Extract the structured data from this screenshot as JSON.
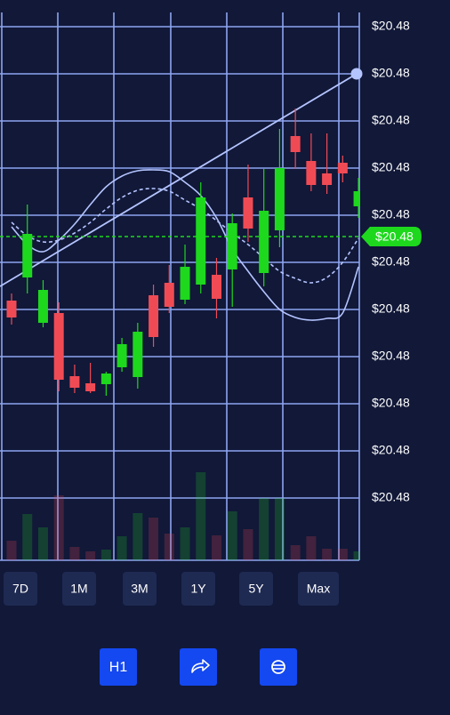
{
  "chart_data": {
    "type": "candlestick",
    "up_color": "#1ed81e",
    "down_color": "#f04b55",
    "grid": true,
    "ylim": [
      0,
      630
    ],
    "yticks": [
      70,
      123,
      176,
      229,
      282,
      335,
      388,
      441,
      494,
      547,
      600
    ],
    "tick_labels": [
      "$20.48",
      "$20.48",
      "$20.48",
      "$20.48",
      "$20.48",
      "$20.48",
      "$20.48",
      "$20.48",
      "$20.48",
      "$20.48",
      "$20.48"
    ],
    "candles": [
      {
        "open": 292,
        "close": 273,
        "high": 300,
        "low": 265
      },
      {
        "open": 318,
        "close": 367,
        "high": 400,
        "low": 300
      },
      {
        "open": 267,
        "close": 304,
        "high": 315,
        "low": 262
      },
      {
        "open": 278,
        "close": 203,
        "high": 290,
        "low": 190
      },
      {
        "open": 207,
        "close": 194,
        "high": 220,
        "low": 188
      },
      {
        "open": 199,
        "close": 190,
        "high": 222,
        "low": 188
      },
      {
        "open": 198,
        "close": 210,
        "high": 212,
        "low": 185
      },
      {
        "open": 217,
        "close": 243,
        "high": 250,
        "low": 212
      },
      {
        "open": 206,
        "close": 257,
        "high": 267,
        "low": 193
      },
      {
        "open": 298,
        "close": 251,
        "high": 310,
        "low": 240
      },
      {
        "open": 312,
        "close": 285,
        "high": 332,
        "low": 278
      },
      {
        "open": 293,
        "close": 330,
        "high": 355,
        "low": 288
      },
      {
        "open": 310,
        "close": 408,
        "high": 425,
        "low": 300
      },
      {
        "open": 321,
        "close": 294,
        "high": 340,
        "low": 272
      },
      {
        "open": 327,
        "close": 379,
        "high": 390,
        "low": 285
      },
      {
        "open": 408,
        "close": 373,
        "high": 445,
        "low": 358
      },
      {
        "open": 323,
        "close": 393,
        "high": 440,
        "low": 308
      },
      {
        "open": 371,
        "close": 441,
        "high": 485,
        "low": 352
      },
      {
        "open": 477,
        "close": 459,
        "high": 508,
        "low": 440
      },
      {
        "open": 449,
        "close": 422,
        "high": 480,
        "low": 415
      },
      {
        "open": 435,
        "close": 422,
        "high": 480,
        "low": 412
      },
      {
        "open": 447,
        "close": 435,
        "high": 455,
        "low": 425
      },
      {
        "open": 398,
        "close": 415,
        "high": 430,
        "low": 385
      }
    ],
    "volume": [
      22,
      52,
      37,
      73,
      15,
      10,
      12,
      27,
      53,
      48,
      30,
      37,
      99,
      28,
      55,
      35,
      70,
      70,
      17,
      27,
      13,
      13,
      10
    ],
    "volume_lim": [
      0,
      100
    ],
    "trend_line": [
      308,
      547
    ],
    "curves": [
      {
        "style": "solid",
        "values": [
          375,
          355,
          347,
          360,
          378,
          400,
          420,
          432,
          438,
          439,
          437,
          425,
          410,
          385,
          350,
          325,
          302,
          282,
          273,
          270,
          272,
          278,
          330
        ]
      },
      {
        "style": "dashed",
        "values": [
          380,
          365,
          358,
          360,
          368,
          380,
          395,
          408,
          416,
          418,
          415,
          405,
          395,
          382,
          368,
          355,
          340,
          325,
          317,
          312,
          318,
          335,
          362
        ]
      }
    ],
    "current_price": 364,
    "current_price_label": "$20.48"
  },
  "range_buttons": [
    "7D",
    "1M",
    "3M",
    "1Y",
    "5Y",
    "Max"
  ],
  "action_buttons": [
    "H1"
  ]
}
